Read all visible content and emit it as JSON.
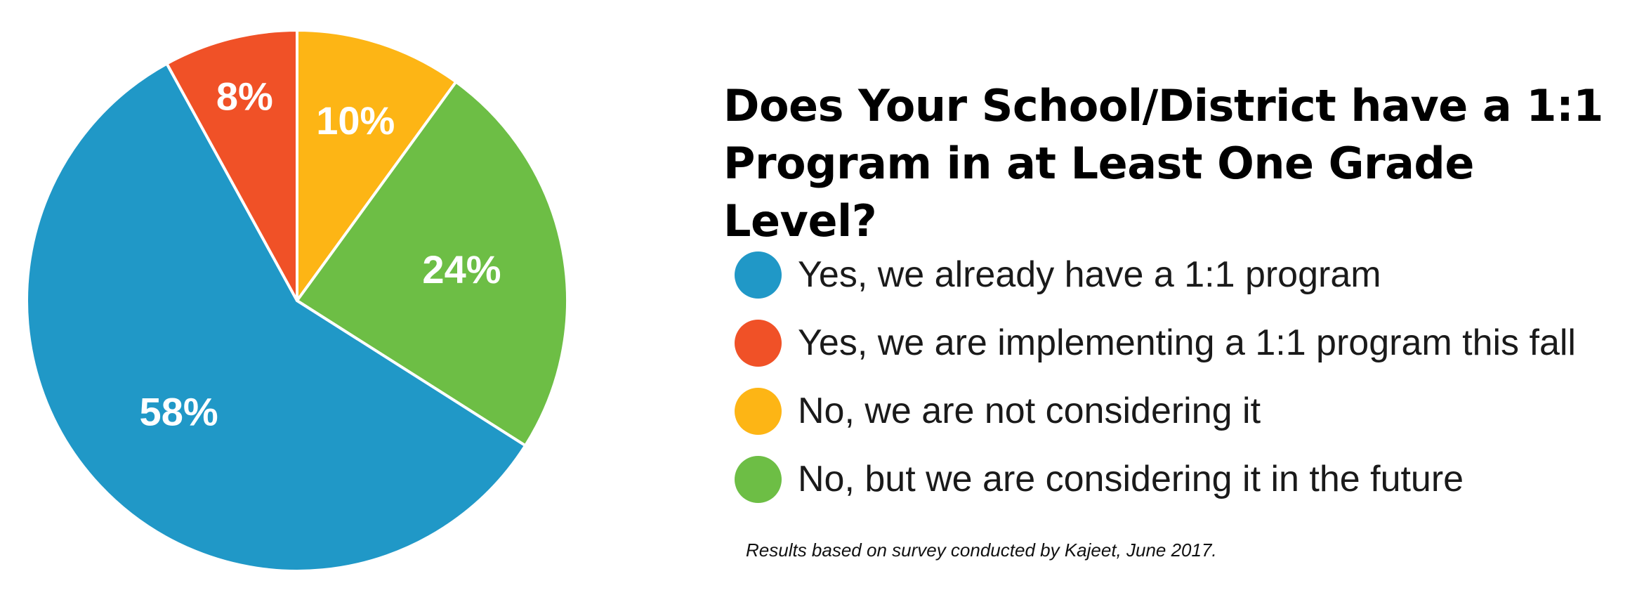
{
  "chart_data": {
    "type": "pie",
    "title": "Does Your School/District have a 1:1 Program in at Least One Grade Level?",
    "slices": [
      {
        "name": "Yes, we already have a 1:1 program",
        "value": 58,
        "label": "58%",
        "color": "#2098C7"
      },
      {
        "name": "Yes, we are implementing a 1:1 program this fall",
        "value": 8,
        "label": "8%",
        "color": "#F05127"
      },
      {
        "name": "No, we are not considering it",
        "value": 10,
        "label": "10%",
        "color": "#FDB515"
      },
      {
        "name": "No, but we are considering it in the future",
        "value": 24,
        "label": "24%",
        "color": "#6DBE45"
      }
    ],
    "legend_placement": "right",
    "annotation": "Results based on survey conducted by Kajeet, June 2017."
  }
}
